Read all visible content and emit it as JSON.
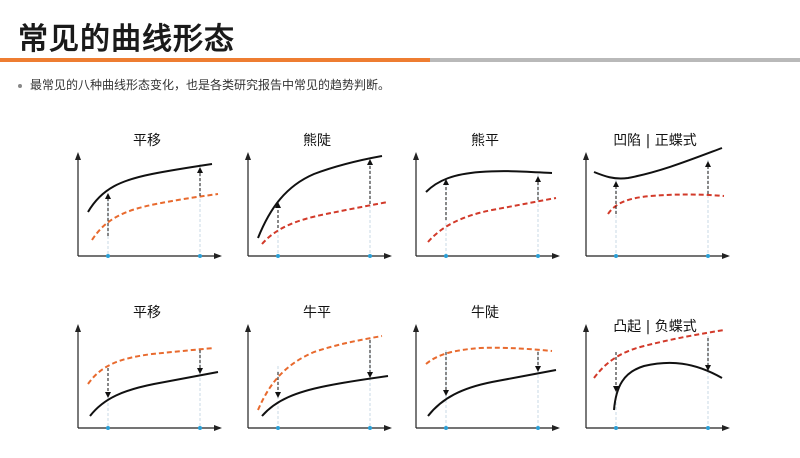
{
  "title": "常见的曲线形态",
  "subtitle": "最常见的八种曲线形态变化，也是各类研究报告中常见的趋势判断。",
  "colors": {
    "accent": "#ee7d31",
    "solid": "#111111",
    "dashed_red": "#d23a2a",
    "dashed_orange": "#e86a2e",
    "guide": "#bcd3e0",
    "tick": "#2a9fd6"
  },
  "panels": [
    {
      "label": "平移"
    },
    {
      "label": "熊陡"
    },
    {
      "label": "熊平"
    },
    {
      "label": "凹陷 | 正蝶式"
    },
    {
      "label": "平移"
    },
    {
      "label": "牛平"
    },
    {
      "label": "牛陡"
    },
    {
      "label": "凸起 | 负蝶式"
    }
  ]
}
